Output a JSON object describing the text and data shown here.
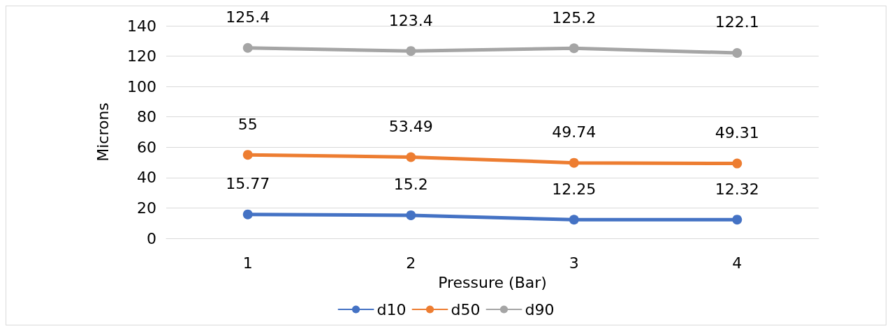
{
  "chart_data": {
    "type": "line",
    "xlabel": "Pressure (Bar)",
    "ylabel": "Microns",
    "categories": [
      "1",
      "2",
      "3",
      "4"
    ],
    "series": [
      {
        "name": "d10",
        "color": "#4472c4",
        "values": [
          15.77,
          15.2,
          12.25,
          12.32
        ]
      },
      {
        "name": "d50",
        "color": "#ed7d31",
        "values": [
          55,
          53.49,
          49.74,
          49.31
        ]
      },
      {
        "name": "d90",
        "color": "#a5a5a5",
        "values": [
          125.4,
          123.4,
          125.2,
          122.1
        ]
      }
    ],
    "ylim": [
      0,
      140
    ],
    "yticks": [
      0,
      20,
      40,
      60,
      80,
      100,
      120,
      140
    ],
    "grid": "y",
    "legend": "bottom",
    "marker": "circle",
    "line_style": "solid",
    "data_labels": true
  }
}
